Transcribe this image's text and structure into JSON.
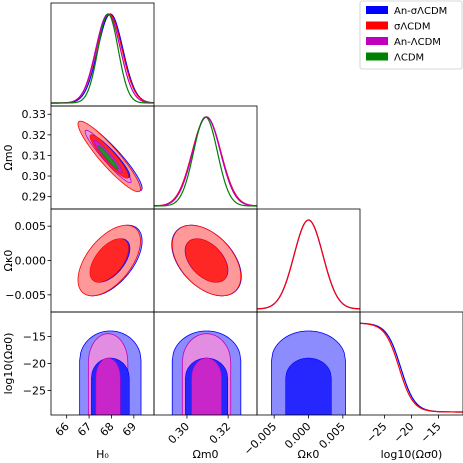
{
  "chart_data": {
    "type": "scatter",
    "subtype": "corner-plot",
    "parameters": [
      {
        "key": "H0",
        "label": "H₀",
        "range": [
          65.3,
          69.9
        ],
        "ticks": [
          66,
          67,
          68,
          69
        ],
        "tick_labels": [
          "66",
          "67",
          "68",
          "69"
        ]
      },
      {
        "key": "Om0",
        "label": "Ωm0",
        "range": [
          0.284,
          0.334
        ],
        "ticks": [
          0.29,
          0.3,
          0.31,
          0.32,
          0.33
        ],
        "tick_labels": [
          "0.29",
          "0.30",
          "0.31",
          "0.32",
          "0.33"
        ],
        "x_ticks": [
          0.3,
          0.32
        ],
        "x_tick_labels": [
          "0.30",
          "0.32"
        ]
      },
      {
        "key": "Ok0",
        "label": "Ωκ0",
        "range": [
          -0.0075,
          0.0075
        ],
        "ticks": [
          -0.005,
          0.0,
          0.005
        ],
        "tick_labels": [
          "−0.005",
          "0.000",
          "0.005"
        ]
      },
      {
        "key": "logOs0",
        "label": "log10(Ωσ0)",
        "range": [
          -29.5,
          -10.5
        ],
        "ticks": [
          -25,
          -20,
          -15
        ],
        "tick_labels": [
          "−25",
          "−20",
          "−15"
        ]
      }
    ],
    "legend": {
      "position": "top-right",
      "entries": [
        {
          "label": "An-σΛCDM",
          "color": "#0000ff"
        },
        {
          "label": "σΛCDM",
          "color": "#ff0000"
        },
        {
          "label": "An-ΛCDM",
          "color": "#bf00bf"
        },
        {
          "label": "ΛCDM",
          "color": "#008000"
        }
      ]
    },
    "marginals": {
      "H0": {
        "An-σΛCDM": {
          "mean": 67.95,
          "sd": 0.56
        },
        "σΛCDM": {
          "mean": 67.9,
          "sd": 0.57
        },
        "An-ΛCDM": {
          "mean": 67.85,
          "sd": 0.55
        },
        "ΛCDM": {
          "mean": 67.85,
          "sd": 0.45
        }
      },
      "Om0": {
        "An-σΛCDM": {
          "mean": 0.3095,
          "sd": 0.0068
        },
        "σΛCDM": {
          "mean": 0.3095,
          "sd": 0.007
        },
        "An-ΛCDM": {
          "mean": 0.3095,
          "sd": 0.0068
        },
        "ΛCDM": {
          "mean": 0.309,
          "sd": 0.0058
        }
      },
      "Ok0": {
        "An-σΛCDM": {
          "mean": 0.0,
          "sd": 0.0021
        },
        "σΛCDM": {
          "mean": 0.0,
          "sd": 0.0021
        }
      },
      "logOs0": {
        "An-σΛCDM": {
          "plateau_end": -22.0,
          "edge_width": 1.3
        },
        "σΛCDM": {
          "plateau_end": -22.3,
          "edge_width": 1.3
        }
      }
    },
    "contours": [
      {
        "x": "H0",
        "y": "Om0",
        "series": [
          {
            "name": "An-σΛCDM",
            "center": [
              67.95,
              0.3095
            ],
            "sx": 0.58,
            "sy": 0.0068,
            "rho": -0.92
          },
          {
            "name": "σΛCDM",
            "center": [
              67.9,
              0.3095
            ],
            "sx": 0.57,
            "sy": 0.007,
            "rho": -0.92
          },
          {
            "name": "An-ΛCDM",
            "center": [
              67.85,
              0.3095
            ],
            "sx": 0.42,
            "sy": 0.0052,
            "rho": -0.95
          },
          {
            "name": "ΛCDM",
            "center": [
              67.85,
              0.309
            ],
            "sx": 0.3,
            "sy": 0.0038,
            "rho": -0.97
          }
        ]
      },
      {
        "x": "H0",
        "y": "Ok0",
        "series": [
          {
            "name": "An-σΛCDM",
            "center": [
              67.95,
              0.0
            ],
            "sx": 0.58,
            "sy": 0.0021,
            "rho": 0.55
          },
          {
            "name": "σΛCDM",
            "center": [
              67.9,
              0.0
            ],
            "sx": 0.57,
            "sy": 0.0021,
            "rho": 0.55
          }
        ]
      },
      {
        "x": "Om0",
        "y": "Ok0",
        "series": [
          {
            "name": "An-σΛCDM",
            "center": [
              0.3095,
              0.0
            ],
            "sx": 0.0069,
            "sy": 0.0021,
            "rho": -0.45
          },
          {
            "name": "σΛCDM",
            "center": [
              0.3095,
              0.0
            ],
            "sx": 0.0068,
            "sy": 0.0021,
            "rho": -0.45
          }
        ]
      },
      {
        "x": "H0",
        "y": "logOs0",
        "series": [
          {
            "name": "An-σΛCDM",
            "center": [
              67.95,
              -29.5
            ],
            "sx": 0.56,
            "top1": -19.0,
            "top2": -14.0
          },
          {
            "name": "An-ΛCDM",
            "center": [
              67.85,
              -29.5
            ],
            "sx": 0.36,
            "top1": -19.0,
            "top2": -14.5
          }
        ]
      },
      {
        "x": "Om0",
        "y": "logOs0",
        "series": [
          {
            "name": "An-σΛCDM",
            "center": [
              0.3095,
              -29.5
            ],
            "sx": 0.0068,
            "top1": -19.0,
            "top2": -14.0
          },
          {
            "name": "An-ΛCDM",
            "center": [
              0.3095,
              -29.5
            ],
            "sx": 0.0048,
            "top1": -19.0,
            "top2": -14.5
          }
        ]
      },
      {
        "x": "Ok0",
        "y": "logOs0",
        "series": [
          {
            "name": "An-σΛCDM",
            "center": [
              0.0,
              -29.5
            ],
            "sx": 0.0022,
            "top1": -19.0,
            "top2": -14.0
          }
        ]
      }
    ],
    "levels": [
      0.68,
      0.95
    ],
    "grid": false
  }
}
